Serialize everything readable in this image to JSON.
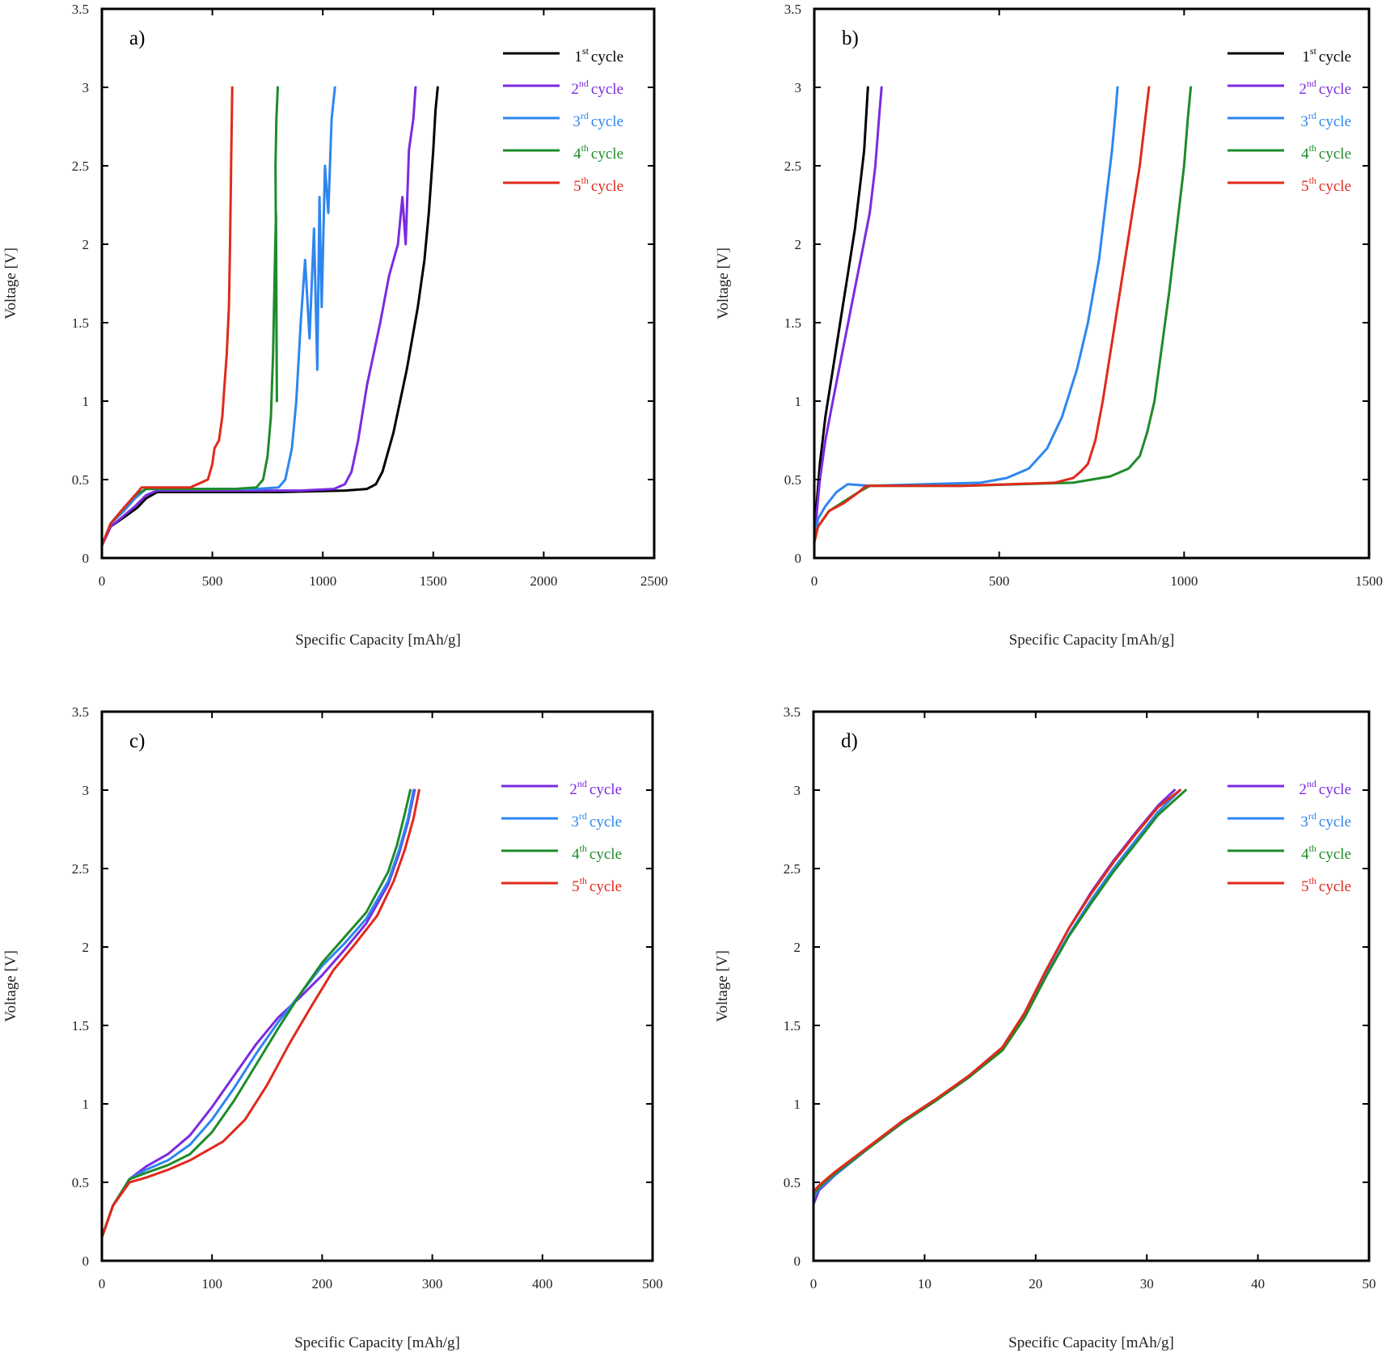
{
  "chart_data": [
    {
      "type": "line",
      "panel": "a)",
      "xlabel": "Specific Capacity [mAh/g]",
      "ylabel": "Voltage [V]",
      "xlim": [
        0,
        2500
      ],
      "ylim": [
        0,
        3.5
      ],
      "xticks": [
        0,
        500,
        1000,
        1500,
        2000,
        2500
      ],
      "xtick_labels": [
        "0",
        "500",
        "1000",
        "1500",
        "2000",
        "2500"
      ],
      "yticks": [
        0,
        0.5,
        1,
        1.5,
        2,
        2.5,
        3,
        3.5
      ],
      "ytick_labels": [
        "0",
        "0.5",
        "1",
        "1.5",
        "2",
        "2.5",
        "3",
        "3.5"
      ],
      "legend_position": "top-right",
      "series": [
        {
          "name": "1st cycle",
          "num": "1",
          "sup": "st",
          "word": "cycle",
          "color": "#000000",
          "x": [
            0,
            40,
            100,
            160,
            200,
            250,
            400,
            800,
            1100,
            1200,
            1240,
            1270,
            1320,
            1380,
            1430,
            1460,
            1480,
            1500,
            1510,
            1520
          ],
          "y": [
            0.08,
            0.2,
            0.26,
            0.32,
            0.38,
            0.42,
            0.42,
            0.42,
            0.43,
            0.44,
            0.47,
            0.55,
            0.8,
            1.2,
            1.6,
            1.9,
            2.2,
            2.6,
            2.85,
            3.0
          ]
        },
        {
          "name": "2nd cycle",
          "num": "2",
          "sup": "nd",
          "word": "cycle",
          "color": "#7b2be0",
          "x": [
            0,
            40,
            100,
            150,
            200,
            250,
            500,
            900,
            1050,
            1100,
            1130,
            1160,
            1200,
            1260,
            1300,
            1340,
            1360,
            1375,
            1390,
            1410,
            1420
          ],
          "y": [
            0.08,
            0.2,
            0.27,
            0.33,
            0.4,
            0.43,
            0.43,
            0.43,
            0.44,
            0.47,
            0.55,
            0.75,
            1.1,
            1.5,
            1.8,
            2.0,
            2.3,
            2.0,
            2.6,
            2.8,
            3.0
          ]
        },
        {
          "name": "3rd cycle",
          "num": "3",
          "sup": "rd",
          "word": "cycle",
          "color": "#2e86f0",
          "x": [
            0,
            40,
            100,
            150,
            200,
            300,
            700,
            800,
            830,
            860,
            880,
            900,
            920,
            940,
            960,
            975,
            985,
            995,
            1010,
            1025,
            1040,
            1055
          ],
          "y": [
            0.08,
            0.22,
            0.3,
            0.38,
            0.44,
            0.44,
            0.44,
            0.45,
            0.5,
            0.7,
            1.0,
            1.5,
            1.9,
            1.4,
            2.1,
            1.2,
            2.3,
            1.6,
            2.5,
            2.2,
            2.8,
            3.0
          ]
        },
        {
          "name": "4th cycle",
          "num": "4",
          "sup": "th",
          "word": "cycle",
          "color": "#1f8b2a",
          "x": [
            0,
            40,
            100,
            150,
            200,
            300,
            600,
            700,
            730,
            750,
            765,
            775,
            782,
            788,
            792,
            786,
            790,
            796
          ],
          "y": [
            0.08,
            0.22,
            0.32,
            0.4,
            0.44,
            0.44,
            0.44,
            0.45,
            0.5,
            0.65,
            0.9,
            1.3,
            1.8,
            2.2,
            1.0,
            2.5,
            2.8,
            3.0
          ]
        },
        {
          "name": "5th cycle",
          "num": "5",
          "sup": "th",
          "word": "cycle",
          "color": "#e02a1b",
          "x": [
            0,
            40,
            100,
            150,
            180,
            250,
            400,
            480,
            500,
            510,
            530,
            545,
            555,
            565,
            575,
            580,
            585,
            590
          ],
          "y": [
            0.08,
            0.22,
            0.32,
            0.4,
            0.45,
            0.45,
            0.45,
            0.5,
            0.6,
            0.7,
            0.75,
            0.9,
            1.1,
            1.3,
            1.6,
            2.0,
            2.5,
            3.0
          ]
        }
      ]
    },
    {
      "type": "line",
      "panel": "b)",
      "xlabel": "Specific Capacity [mAh/g]",
      "ylabel": "Voltage [V]",
      "xlim": [
        0,
        1500
      ],
      "ylim": [
        0,
        3.5
      ],
      "xticks": [
        0,
        500,
        1000,
        1500
      ],
      "xtick_labels": [
        "0",
        "500",
        "1000",
        "1500"
      ],
      "yticks": [
        0,
        0.5,
        1,
        1.5,
        2,
        2.5,
        3,
        3.5
      ],
      "ytick_labels": [
        "0",
        "0.5",
        "1",
        "1.5",
        "2",
        "2.5",
        "3",
        "3.5"
      ],
      "legend_position": "top-right",
      "series": [
        {
          "name": "1st cycle",
          "num": "1",
          "sup": "st",
          "word": "cycle",
          "color": "#000000",
          "x": [
            0,
            5,
            15,
            30,
            50,
            70,
            90,
            110,
            125,
            135,
            140,
            145
          ],
          "y": [
            0.1,
            0.3,
            0.6,
            0.9,
            1.2,
            1.5,
            1.8,
            2.1,
            2.4,
            2.6,
            2.8,
            3.0
          ]
        },
        {
          "name": "2nd cycle",
          "num": "2",
          "sup": "nd",
          "word": "cycle",
          "color": "#7b2be0",
          "x": [
            0,
            5,
            15,
            30,
            50,
            75,
            100,
            125,
            150,
            165,
            175,
            182
          ],
          "y": [
            0.1,
            0.25,
            0.5,
            0.75,
            1.0,
            1.3,
            1.6,
            1.9,
            2.2,
            2.5,
            2.8,
            3.0
          ]
        },
        {
          "name": "3rd cycle",
          "num": "3",
          "sup": "rd",
          "word": "cycle",
          "color": "#2e86f0",
          "x": [
            0,
            10,
            30,
            60,
            90,
            150,
            300,
            450,
            520,
            580,
            630,
            670,
            710,
            740,
            770,
            790,
            805,
            815,
            820
          ],
          "y": [
            0.1,
            0.25,
            0.33,
            0.42,
            0.47,
            0.46,
            0.47,
            0.48,
            0.51,
            0.57,
            0.7,
            0.9,
            1.2,
            1.5,
            1.9,
            2.3,
            2.6,
            2.85,
            3.0
          ]
        },
        {
          "name": "4th cycle",
          "num": "4",
          "sup": "th",
          "word": "cycle",
          "color": "#1f8b2a",
          "x": [
            0,
            10,
            40,
            80,
            120,
            150,
            400,
            700,
            800,
            850,
            880,
            900,
            920,
            940,
            960,
            980,
            1000,
            1010,
            1018
          ],
          "y": [
            0.1,
            0.2,
            0.3,
            0.36,
            0.42,
            0.46,
            0.46,
            0.48,
            0.52,
            0.57,
            0.65,
            0.8,
            1.0,
            1.35,
            1.7,
            2.1,
            2.5,
            2.8,
            3.0
          ]
        },
        {
          "name": "5th cycle",
          "num": "5",
          "sup": "th",
          "word": "cycle",
          "color": "#e02a1b",
          "x": [
            0,
            10,
            40,
            80,
            120,
            140,
            400,
            650,
            700,
            720,
            740,
            760,
            780,
            800,
            820,
            840,
            860,
            880,
            895,
            905
          ],
          "y": [
            0.1,
            0.2,
            0.3,
            0.35,
            0.42,
            0.46,
            0.46,
            0.48,
            0.51,
            0.55,
            0.6,
            0.75,
            1.0,
            1.3,
            1.6,
            1.9,
            2.2,
            2.5,
            2.8,
            3.0
          ]
        }
      ]
    },
    {
      "type": "line",
      "panel": "c)",
      "xlabel": "Specific Capacity [mAh/g]",
      "ylabel": "Voltage [V]",
      "xlim": [
        0,
        500
      ],
      "ylim": [
        0,
        3.5
      ],
      "xticks": [
        0,
        100,
        200,
        300,
        400,
        500
      ],
      "xtick_labels": [
        "0",
        "100",
        "200",
        "300",
        "400",
        "500"
      ],
      "yticks": [
        0,
        0.5,
        1,
        1.5,
        2,
        2.5,
        3,
        3.5
      ],
      "ytick_labels": [
        "0",
        "0.5",
        "1",
        "1.5",
        "2",
        "2.5",
        "3",
        "3.5"
      ],
      "legend_position": "top-right",
      "series": [
        {
          "name": "2nd cycle",
          "num": "2",
          "sup": "nd",
          "word": "cycle",
          "color": "#7b2be0",
          "x": [
            0,
            10,
            25,
            40,
            60,
            80,
            100,
            120,
            140,
            160,
            180,
            200,
            220,
            240,
            260,
            270,
            278,
            284
          ],
          "y": [
            0.15,
            0.35,
            0.52,
            0.6,
            0.68,
            0.8,
            0.98,
            1.18,
            1.38,
            1.55,
            1.68,
            1.82,
            1.98,
            2.15,
            2.4,
            2.6,
            2.8,
            3.0
          ]
        },
        {
          "name": "3rd cycle",
          "num": "3",
          "sup": "rd",
          "word": "cycle",
          "color": "#2e86f0",
          "x": [
            0,
            10,
            25,
            40,
            60,
            80,
            100,
            120,
            140,
            160,
            180,
            200,
            220,
            240,
            260,
            270,
            278,
            283
          ],
          "y": [
            0.15,
            0.35,
            0.52,
            0.58,
            0.64,
            0.74,
            0.9,
            1.1,
            1.32,
            1.52,
            1.7,
            1.88,
            2.02,
            2.18,
            2.42,
            2.62,
            2.82,
            3.0
          ]
        },
        {
          "name": "4th cycle",
          "num": "4",
          "sup": "th",
          "word": "cycle",
          "color": "#1f8b2a",
          "x": [
            0,
            10,
            25,
            40,
            60,
            80,
            100,
            120,
            140,
            160,
            180,
            200,
            220,
            240,
            260,
            268,
            275,
            280
          ],
          "y": [
            0.15,
            0.35,
            0.52,
            0.56,
            0.61,
            0.68,
            0.82,
            1.02,
            1.25,
            1.48,
            1.7,
            1.9,
            2.06,
            2.22,
            2.48,
            2.65,
            2.85,
            3.0
          ]
        },
        {
          "name": "5th cycle",
          "num": "5",
          "sup": "th",
          "word": "cycle",
          "color": "#e02a1b",
          "x": [
            0,
            10,
            25,
            40,
            60,
            80,
            100,
            110,
            130,
            150,
            170,
            190,
            210,
            230,
            250,
            265,
            275,
            283,
            288
          ],
          "y": [
            0.15,
            0.35,
            0.5,
            0.53,
            0.58,
            0.64,
            0.72,
            0.76,
            0.9,
            1.12,
            1.38,
            1.62,
            1.85,
            2.02,
            2.2,
            2.42,
            2.62,
            2.82,
            3.0
          ]
        }
      ]
    },
    {
      "type": "line",
      "panel": "d)",
      "xlabel": "Specific Capacity [mAh/g]",
      "ylabel": "Voltage [V]",
      "xlim": [
        0,
        50
      ],
      "ylim": [
        0,
        3.5
      ],
      "xticks": [
        0,
        10,
        20,
        30,
        40,
        50
      ],
      "xtick_labels": [
        "0",
        "10",
        "20",
        "30",
        "40",
        "50"
      ],
      "yticks": [
        0,
        0.5,
        1,
        1.5,
        2,
        2.5,
        3,
        3.5
      ],
      "ytick_labels": [
        "0",
        "0.5",
        "1",
        "1.5",
        "2",
        "2.5",
        "3",
        "3.5"
      ],
      "legend_position": "top-right",
      "series": [
        {
          "name": "2nd cycle",
          "num": "2",
          "sup": "nd",
          "word": "cycle",
          "color": "#7b2be0",
          "x": [
            0,
            0.5,
            2,
            5,
            8,
            11,
            14,
            17,
            19,
            21,
            23,
            25,
            27,
            29,
            31,
            32.5
          ],
          "y": [
            0.36,
            0.45,
            0.55,
            0.72,
            0.88,
            1.02,
            1.18,
            1.36,
            1.58,
            1.86,
            2.12,
            2.35,
            2.55,
            2.73,
            2.9,
            3.0
          ]
        },
        {
          "name": "3rd cycle",
          "num": "3",
          "sup": "rd",
          "word": "cycle",
          "color": "#2e86f0",
          "x": [
            0,
            0.5,
            2,
            5,
            8,
            11,
            14,
            17,
            19,
            21,
            23,
            25,
            27,
            29,
            31,
            33
          ],
          "y": [
            0.4,
            0.46,
            0.55,
            0.72,
            0.88,
            1.02,
            1.17,
            1.35,
            1.56,
            1.83,
            2.08,
            2.3,
            2.5,
            2.68,
            2.86,
            3.0
          ]
        },
        {
          "name": "4th cycle",
          "num": "4",
          "sup": "th",
          "word": "cycle",
          "color": "#1f8b2a",
          "x": [
            0,
            0.5,
            2,
            5,
            8,
            11,
            14,
            17,
            19,
            21,
            23,
            25,
            27,
            29,
            31,
            33.5
          ],
          "y": [
            0.42,
            0.47,
            0.56,
            0.72,
            0.88,
            1.02,
            1.17,
            1.34,
            1.55,
            1.82,
            2.07,
            2.28,
            2.48,
            2.66,
            2.84,
            3.0
          ]
        },
        {
          "name": "5th cycle",
          "num": "5",
          "sup": "th",
          "word": "cycle",
          "color": "#e02a1b",
          "x": [
            0,
            0.5,
            2,
            5,
            8,
            11,
            14,
            17,
            19,
            21,
            23,
            25,
            27,
            29,
            31,
            33
          ],
          "y": [
            0.44,
            0.48,
            0.57,
            0.73,
            0.89,
            1.03,
            1.18,
            1.36,
            1.58,
            1.86,
            2.12,
            2.34,
            2.54,
            2.72,
            2.89,
            3.0
          ]
        }
      ]
    }
  ]
}
